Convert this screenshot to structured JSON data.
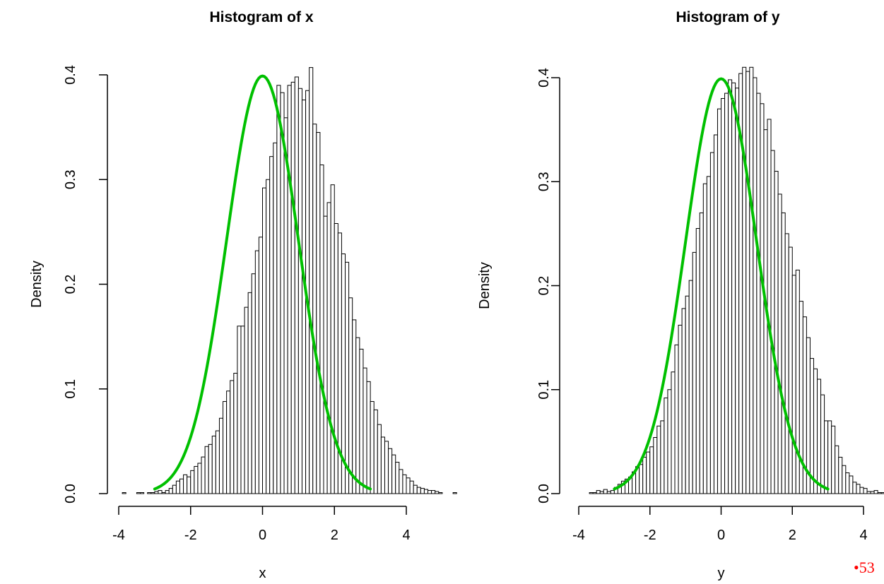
{
  "page": {
    "slide_number": "•53",
    "slide_number_color": "#ff0000"
  },
  "chart_data": [
    {
      "type": "bar",
      "title": "Histogram of x",
      "xlabel": "x",
      "ylabel": "Density",
      "xlim": [
        -4,
        4
      ],
      "ylim": [
        0,
        0.4
      ],
      "xticks": [
        "-4",
        "-2",
        "0",
        "2",
        "4"
      ],
      "yticks": [
        "0.0",
        "0.1",
        "0.2",
        "0.3",
        "0.4"
      ],
      "grid": false,
      "bin_width": 0.1,
      "bin_start": -3.9,
      "densities": [
        0.001,
        0,
        0,
        0,
        0.001,
        0.001,
        0,
        0.001,
        0.001,
        0.002,
        0.003,
        0.001,
        0.003,
        0.005,
        0.008,
        0.012,
        0.014,
        0.018,
        0.016,
        0.022,
        0.026,
        0.029,
        0.035,
        0.045,
        0.047,
        0.055,
        0.06,
        0.072,
        0.088,
        0.098,
        0.108,
        0.115,
        0.16,
        0.16,
        0.178,
        0.192,
        0.21,
        0.232,
        0.245,
        0.292,
        0.3,
        0.322,
        0.335,
        0.39,
        0.383,
        0.359,
        0.39,
        0.393,
        0.398,
        0.387,
        0.376,
        0.385,
        0.407,
        0.353,
        0.345,
        0.314,
        0.265,
        0.278,
        0.295,
        0.258,
        0.249,
        0.229,
        0.221,
        0.187,
        0.166,
        0.149,
        0.138,
        0.12,
        0.107,
        0.088,
        0.08,
        0.066,
        0.054,
        0.05,
        0.043,
        0.037,
        0.03,
        0.023,
        0.018,
        0.015,
        0.012,
        0.008,
        0.006,
        0.005,
        0.004,
        0.003,
        0.003,
        0.002,
        0.001,
        0,
        0,
        0,
        0.001
      ],
      "curve": {
        "name": "normal density",
        "mean": 0,
        "sd": 1,
        "color": "#00c000",
        "x_range": [
          -3,
          3
        ]
      }
    },
    {
      "type": "bar",
      "title": "Histogram of y",
      "xlabel": "y",
      "ylabel": "Density",
      "xlim": [
        -4,
        4
      ],
      "ylim": [
        0,
        0.4
      ],
      "xticks": [
        "-4",
        "-2",
        "0",
        "2",
        "4"
      ],
      "yticks": [
        "0.0",
        "0.1",
        "0.2",
        "0.3",
        "0.4"
      ],
      "grid": false,
      "bin_width": 0.1,
      "bin_start": -3.7,
      "densities": [
        0.001,
        0.001,
        0.003,
        0.002,
        0.004,
        0.002,
        0.003,
        0.006,
        0.009,
        0.012,
        0.014,
        0.016,
        0.021,
        0.026,
        0.028,
        0.035,
        0.04,
        0.045,
        0.054,
        0.065,
        0.07,
        0.092,
        0.1,
        0.117,
        0.143,
        0.162,
        0.178,
        0.19,
        0.205,
        0.232,
        0.255,
        0.27,
        0.298,
        0.305,
        0.328,
        0.345,
        0.37,
        0.38,
        0.385,
        0.398,
        0.395,
        0.39,
        0.404,
        0.41,
        0.406,
        0.41,
        0.4,
        0.385,
        0.375,
        0.35,
        0.36,
        0.33,
        0.31,
        0.288,
        0.27,
        0.25,
        0.237,
        0.21,
        0.215,
        0.185,
        0.17,
        0.15,
        0.13,
        0.12,
        0.11,
        0.095,
        0.07,
        0.07,
        0.065,
        0.046,
        0.035,
        0.027,
        0.02,
        0.017,
        0.011,
        0.009,
        0.006,
        0.005,
        0.002,
        0.002,
        0.003,
        0.001,
        0.001,
        0,
        0,
        0,
        0,
        0,
        0,
        0,
        0.001
      ],
      "curve": {
        "name": "normal density",
        "mean": 0,
        "sd": 1,
        "color": "#00c000",
        "x_range": [
          -3,
          3
        ]
      }
    }
  ]
}
